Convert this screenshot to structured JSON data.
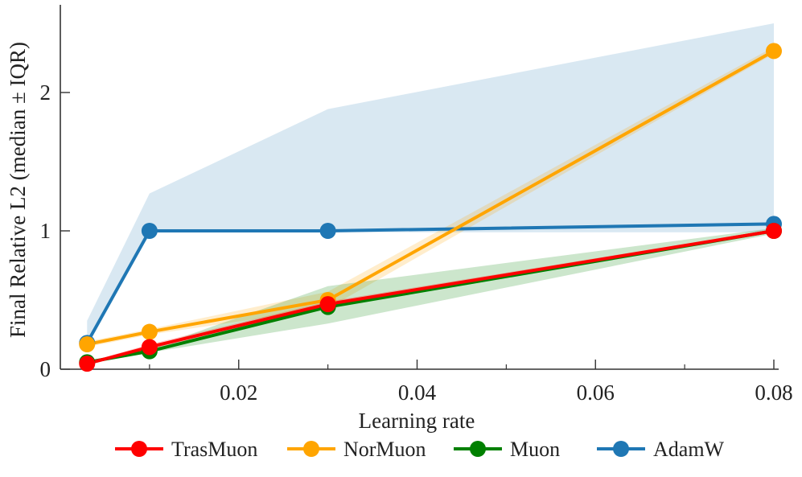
{
  "chart_data": {
    "type": "line",
    "xlabel": "Learning rate",
    "ylabel": "Final Relative L2 (median ± IQR)",
    "xlim": [
      0.0,
      0.08
    ],
    "ylim": [
      0,
      2.6
    ],
    "x_ticks_major": [
      0.02,
      0.04,
      0.06,
      0.08
    ],
    "x_tick_labels": [
      "0.02",
      "0.04",
      "0.06",
      "0.08"
    ],
    "x_ticks_minor": [
      0.01,
      0.03,
      0.05,
      0.07
    ],
    "y_ticks": [
      0,
      1,
      2
    ],
    "y_tick_labels": [
      "0",
      "1",
      "2"
    ],
    "grid": false,
    "legend_position": "bottom",
    "series": [
      {
        "name": "AdamW",
        "color": "#1f77b4",
        "x": [
          0.003,
          0.01,
          0.03,
          0.08
        ],
        "values": [
          0.19,
          1.0,
          1.0,
          1.05
        ],
        "lower": [
          0.19,
          0.99,
          0.99,
          0.99
        ],
        "upper": [
          0.35,
          1.27,
          1.88,
          2.5
        ]
      },
      {
        "name": "NorMuon",
        "color": "#ffa500",
        "x": [
          0.003,
          0.01,
          0.03,
          0.08
        ],
        "values": [
          0.18,
          0.27,
          0.5,
          2.3
        ],
        "lower": [
          0.16,
          0.25,
          0.44,
          2.28
        ],
        "upper": [
          0.2,
          0.29,
          0.56,
          2.33
        ]
      },
      {
        "name": "Muon",
        "color": "#008000",
        "x": [
          0.003,
          0.01,
          0.03,
          0.08
        ],
        "values": [
          0.05,
          0.13,
          0.45,
          1.0
        ],
        "lower": [
          0.04,
          0.12,
          0.33,
          0.98
        ],
        "upper": [
          0.06,
          0.15,
          0.6,
          1.02
        ]
      },
      {
        "name": "TrasMuon",
        "color": "#ff0000",
        "x": [
          0.003,
          0.01,
          0.03,
          0.08
        ],
        "values": [
          0.04,
          0.16,
          0.47,
          1.0
        ],
        "lower": [
          0.03,
          0.14,
          0.45,
          0.99
        ],
        "upper": [
          0.05,
          0.18,
          0.49,
          1.01
        ]
      }
    ],
    "legend": [
      "TrasMuon",
      "NorMuon",
      "Muon",
      "AdamW"
    ]
  }
}
